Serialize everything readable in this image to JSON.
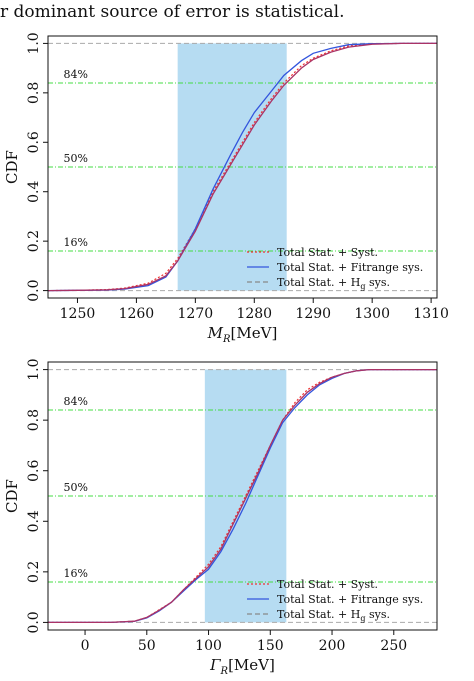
{
  "caption": "r dominant source of error is statistical.",
  "chart_data": [
    {
      "type": "line",
      "xlabel": "M_R[MeV]",
      "ylabel": "CDF",
      "xlim": [
        1245,
        1311
      ],
      "ylim": [
        0,
        1.0
      ],
      "xticks": [
        1250,
        1260,
        1270,
        1280,
        1290,
        1300,
        1310
      ],
      "yticks": [
        "0.0",
        "0.2",
        "0.4",
        "0.6",
        "0.8",
        "1.0"
      ],
      "band": [
        1267,
        1285.5
      ],
      "percent_lines": [
        {
          "y": 0.84,
          "label": "84%"
        },
        {
          "y": 0.5,
          "label": "50%"
        },
        {
          "y": 0.16,
          "label": "16%"
        }
      ],
      "legend_position": "bottom-right",
      "legend": [
        "Total Stat. + Syst.",
        "Total Stat. + Fitrange sys.",
        "Total Stat. + H_g sys."
      ],
      "series": [
        {
          "name": "Total Stat. + Syst.",
          "color": "#ee3333",
          "x": [
            1245,
            1250,
            1255,
            1258,
            1262,
            1265,
            1267,
            1270,
            1273,
            1276,
            1278,
            1280,
            1283,
            1285,
            1288,
            1290,
            1293,
            1296,
            1300,
            1305,
            1311
          ],
          "y": [
            0,
            0.001,
            0.004,
            0.01,
            0.03,
            0.07,
            0.13,
            0.25,
            0.4,
            0.52,
            0.6,
            0.68,
            0.78,
            0.84,
            0.91,
            0.94,
            0.97,
            0.99,
            0.998,
            1.0,
            1.0
          ]
        },
        {
          "name": "Total Stat. + Fitrange sys.",
          "color": "#3355dd",
          "x": [
            1245,
            1250,
            1255,
            1258,
            1262,
            1265,
            1267,
            1270,
            1273,
            1276,
            1278,
            1280,
            1283,
            1285,
            1288,
            1290,
            1293,
            1296,
            1300,
            1305,
            1311
          ],
          "y": [
            0,
            0.001,
            0.002,
            0.006,
            0.02,
            0.055,
            0.12,
            0.25,
            0.41,
            0.55,
            0.64,
            0.72,
            0.81,
            0.87,
            0.93,
            0.96,
            0.98,
            0.995,
            0.999,
            1.0,
            1.0
          ]
        },
        {
          "name": "Total Stat. + H_g sys.",
          "color": "#aa3366",
          "x": [
            1245,
            1250,
            1255,
            1258,
            1262,
            1265,
            1267,
            1270,
            1273,
            1276,
            1278,
            1280,
            1283,
            1285,
            1288,
            1290,
            1293,
            1296,
            1300,
            1305,
            1311
          ],
          "y": [
            0,
            0.001,
            0.003,
            0.008,
            0.025,
            0.06,
            0.12,
            0.24,
            0.39,
            0.51,
            0.59,
            0.67,
            0.77,
            0.83,
            0.9,
            0.935,
            0.965,
            0.985,
            0.997,
            1.0,
            1.0
          ]
        }
      ]
    },
    {
      "type": "line",
      "xlabel": "Γ_R[MeV]",
      "ylabel": "CDF",
      "xlim": [
        -30,
        285
      ],
      "ylim": [
        0,
        1.0
      ],
      "xticks": [
        0,
        50,
        100,
        150,
        200,
        250
      ],
      "yticks": [
        "0.0",
        "0.2",
        "0.4",
        "0.6",
        "0.8",
        "1.0"
      ],
      "band": [
        97,
        163
      ],
      "percent_lines": [
        {
          "y": 0.84,
          "label": "84%"
        },
        {
          "y": 0.5,
          "label": "50%"
        },
        {
          "y": 0.16,
          "label": "16%"
        }
      ],
      "legend_position": "bottom-right",
      "legend": [
        "Total Stat. + Syst.",
        "Total Stat. + Fitrange sys.",
        "Total Stat. + H_g sys."
      ],
      "series": [
        {
          "name": "Total Stat. + Syst.",
          "color": "#ee3333",
          "x": [
            -30,
            20,
            40,
            50,
            60,
            70,
            80,
            90,
            100,
            110,
            120,
            130,
            140,
            150,
            160,
            170,
            180,
            190,
            200,
            210,
            220,
            230,
            250,
            285
          ],
          "y": [
            0,
            0,
            0.005,
            0.02,
            0.05,
            0.08,
            0.13,
            0.18,
            0.23,
            0.3,
            0.4,
            0.5,
            0.6,
            0.7,
            0.8,
            0.87,
            0.92,
            0.95,
            0.97,
            0.985,
            0.995,
            1.0,
            1.0,
            1.0
          ]
        },
        {
          "name": "Total Stat. + Fitrange sys.",
          "color": "#3355dd",
          "x": [
            -30,
            20,
            40,
            50,
            60,
            70,
            80,
            90,
            100,
            110,
            120,
            130,
            140,
            150,
            160,
            170,
            180,
            190,
            200,
            210,
            220,
            230,
            250,
            285
          ],
          "y": [
            0,
            0,
            0.004,
            0.018,
            0.045,
            0.08,
            0.125,
            0.17,
            0.21,
            0.28,
            0.37,
            0.47,
            0.58,
            0.69,
            0.79,
            0.85,
            0.9,
            0.94,
            0.965,
            0.985,
            0.995,
            1.0,
            1.0,
            1.0
          ]
        },
        {
          "name": "Total Stat. + H_g sys.",
          "color": "#aa3366",
          "x": [
            -30,
            20,
            40,
            50,
            60,
            70,
            80,
            90,
            100,
            110,
            120,
            130,
            140,
            150,
            160,
            170,
            180,
            190,
            200,
            210,
            220,
            230,
            250,
            285
          ],
          "y": [
            0,
            0,
            0.005,
            0.02,
            0.048,
            0.08,
            0.13,
            0.175,
            0.22,
            0.29,
            0.39,
            0.49,
            0.59,
            0.7,
            0.8,
            0.86,
            0.91,
            0.945,
            0.97,
            0.985,
            0.995,
            1.0,
            1.0,
            1.0
          ]
        }
      ]
    }
  ]
}
